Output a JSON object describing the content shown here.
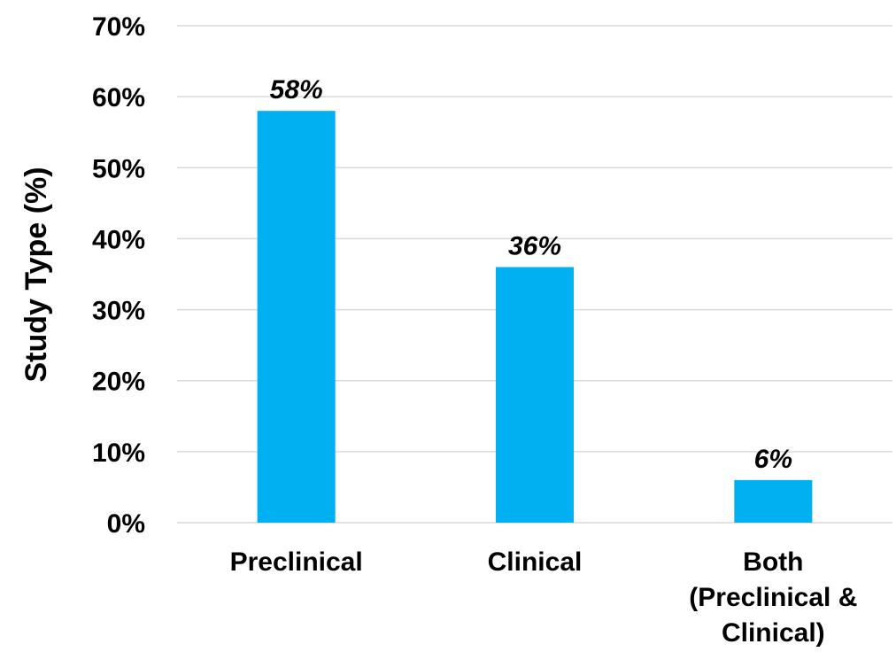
{
  "chart_data": {
    "type": "bar",
    "categories": [
      [
        "Preclinical"
      ],
      [
        "Clinical"
      ],
      [
        "Both",
        "(Preclinical &",
        "Clinical)"
      ]
    ],
    "values": [
      58,
      36,
      6
    ],
    "data_labels": [
      "58%",
      "36%",
      "6%"
    ],
    "ylabel": "Study Type (%)",
    "xlabel": "",
    "ylim": [
      0,
      70
    ],
    "yticks": [
      0,
      10,
      20,
      30,
      40,
      50,
      60,
      70
    ],
    "ytick_labels": [
      "0%",
      "10%",
      "20%",
      "30%",
      "40%",
      "50%",
      "60%",
      "70%"
    ],
    "grid": "horizontal",
    "legend": "none",
    "bar_color": "#00b0f0"
  }
}
